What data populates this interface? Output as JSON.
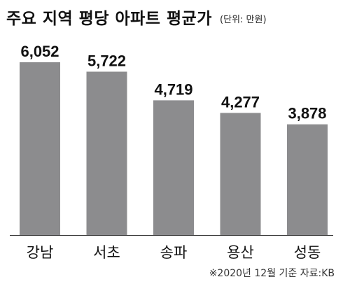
{
  "header": {
    "title": "주요 지역 평당 아파트 평균가",
    "unit_note": "(단위: 만원)"
  },
  "footer": {
    "source": "※2020년 12월 기준 자료:KB"
  },
  "colors": {
    "bar": "#8c8c8e",
    "axis": "#333333",
    "text": "#111111"
  },
  "chart_data": {
    "type": "bar",
    "title": "주요 지역 평당 아파트 평균가",
    "subtitle": "(단위: 만원)",
    "categories": [
      "강남",
      "서초",
      "송파",
      "용산",
      "성동"
    ],
    "values": [
      6052,
      5722,
      4719,
      4277,
      3878
    ],
    "value_labels": [
      "6,052",
      "5,722",
      "4,719",
      "4,277",
      "3,878"
    ],
    "xlabel": "",
    "ylabel": "",
    "ylim": [
      0,
      6052
    ],
    "grid": false,
    "legend": "none"
  }
}
